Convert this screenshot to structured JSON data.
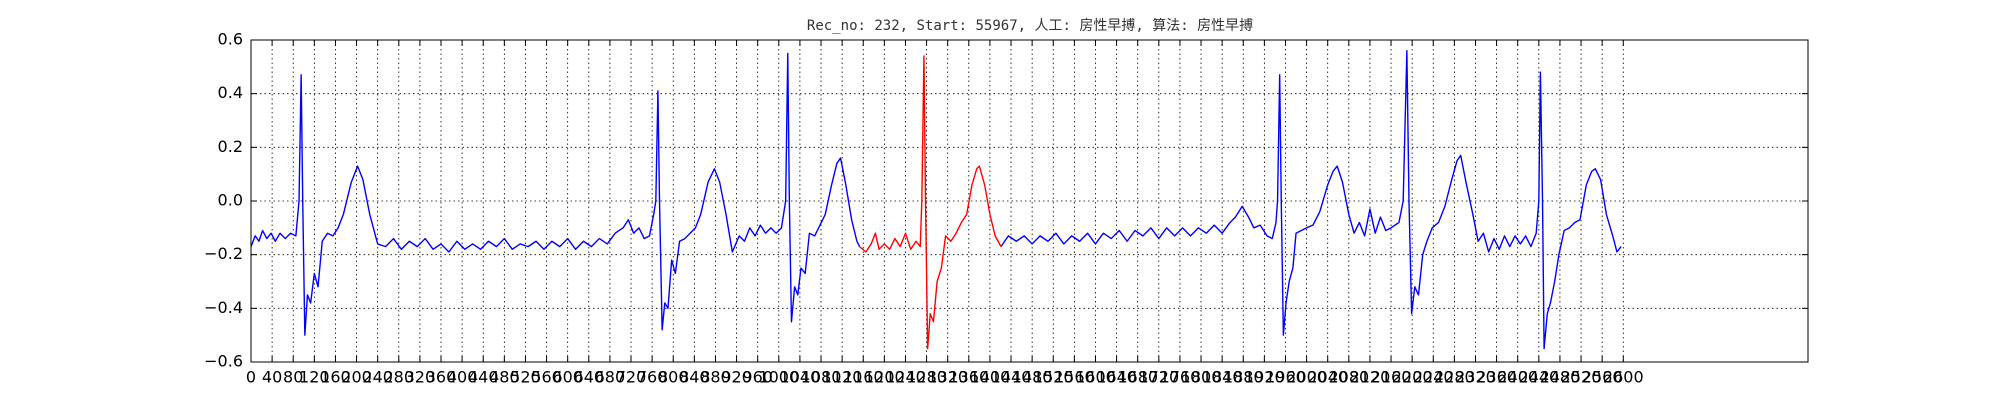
{
  "chart_data": {
    "type": "line",
    "title": "Rec_no: 232, Start: 55967, 人工: 房性早搏, 算法: 房性早搏",
    "x": [
      0,
      8,
      15,
      22,
      30,
      38,
      46,
      55,
      65,
      75,
      85,
      91,
      95,
      98,
      102,
      107,
      113,
      120,
      127,
      135,
      145,
      155,
      165,
      175,
      190,
      202,
      212,
      225,
      240,
      255,
      270,
      285,
      300,
      315,
      330,
      345,
      360,
      375,
      390,
      405,
      420,
      435,
      450,
      465,
      480,
      495,
      510,
      525,
      540,
      555,
      570,
      585,
      600,
      615,
      630,
      645,
      660,
      675,
      690,
      705,
      715,
      725,
      735,
      745,
      755,
      763,
      767,
      771,
      774,
      779,
      784,
      790,
      797,
      804,
      812,
      822,
      832,
      842,
      852,
      866,
      878,
      888,
      900,
      912,
      925,
      935,
      945,
      955,
      965,
      975,
      985,
      995,
      1005,
      1013,
      1017,
      1020,
      1024,
      1030,
      1036,
      1042,
      1050,
      1058,
      1068,
      1078,
      1088,
      1100,
      1110,
      1117,
      1127,
      1138,
      1148,
      1153,
      1165,
      1175,
      1183,
      1190,
      1200,
      1210,
      1220,
      1230,
      1240,
      1250,
      1260,
      1268,
      1271,
      1275,
      1278,
      1282,
      1287,
      1293,
      1300,
      1308,
      1316,
      1326,
      1336,
      1346,
      1356,
      1366,
      1375,
      1380,
      1390,
      1400,
      1410,
      1421,
      1435,
      1450,
      1465,
      1480,
      1495,
      1510,
      1525,
      1540,
      1555,
      1570,
      1585,
      1600,
      1615,
      1630,
      1645,
      1660,
      1675,
      1690,
      1705,
      1720,
      1735,
      1750,
      1765,
      1780,
      1795,
      1810,
      1825,
      1840,
      1855,
      1865,
      1878,
      1890,
      1900,
      1912,
      1925,
      1935,
      1942,
      1945,
      1949,
      1952,
      1956,
      1961,
      1967,
      1974,
      1980,
      1990,
      2000,
      2012,
      2025,
      2040,
      2050,
      2058,
      2068,
      2080,
      2090,
      2100,
      2110,
      2120,
      2130,
      2140,
      2150,
      2160,
      2175,
      2183,
      2190,
      2194,
      2199,
      2205,
      2212,
      2220,
      2228,
      2238,
      2250,
      2262,
      2275,
      2285,
      2292,
      2302,
      2315,
      2325,
      2335,
      2345,
      2355,
      2365,
      2375,
      2385,
      2395,
      2405,
      2415,
      2425,
      2435,
      2440,
      2443,
      2447,
      2450,
      2456,
      2462,
      2470,
      2478,
      2488,
      2498,
      2508,
      2518,
      2530,
      2540,
      2547,
      2557,
      2568,
      2580,
      2588,
      2596
    ],
    "series": [
      {
        "color": "#0000ff",
        "values": [
          -0.17,
          -0.13,
          -0.15,
          -0.11,
          -0.14,
          -0.12,
          -0.15,
          -0.12,
          -0.14,
          -0.12,
          -0.13,
          0.0,
          0.47,
          0.0,
          -0.5,
          -0.35,
          -0.38,
          -0.27,
          -0.32,
          -0.15,
          -0.12,
          -0.13,
          -0.1,
          -0.05,
          0.07,
          0.13,
          0.08,
          -0.05,
          -0.16,
          -0.17,
          -0.14,
          -0.18,
          -0.15,
          -0.17,
          -0.14,
          -0.18,
          -0.16,
          -0.19,
          -0.15,
          -0.18,
          -0.16,
          -0.18,
          -0.15,
          -0.17,
          -0.14,
          -0.18,
          -0.16,
          -0.17,
          -0.15,
          -0.18,
          -0.15,
          -0.17,
          -0.14,
          -0.18,
          -0.15,
          -0.17,
          -0.14,
          -0.16,
          -0.12,
          -0.1,
          -0.07,
          -0.12,
          -0.1,
          -0.14,
          -0.13,
          -0.05,
          0.0,
          0.41,
          0.0,
          -0.48,
          -0.38,
          -0.4,
          -0.22,
          -0.27,
          -0.15,
          -0.14,
          -0.12,
          -0.1,
          -0.05,
          0.07,
          0.12,
          0.07,
          -0.05,
          -0.19,
          -0.13,
          -0.15,
          -0.1,
          -0.13,
          -0.09,
          -0.12,
          -0.1,
          -0.12,
          -0.1,
          0.0,
          0.55,
          0.0,
          -0.45,
          -0.32,
          -0.35,
          -0.25,
          -0.27,
          -0.12,
          -0.13,
          -0.09,
          -0.05,
          0.06,
          0.14,
          0.16,
          0.06,
          -0.07,
          -0.15,
          -0.17,
          null,
          null,
          null,
          null,
          null,
          null,
          null,
          null,
          null,
          null,
          null,
          null,
          null,
          null,
          null,
          null,
          null,
          null,
          null,
          null,
          null,
          null,
          null,
          null,
          null,
          null,
          null,
          null,
          null,
          null,
          null,
          -0.17,
          -0.13,
          -0.15,
          -0.13,
          -0.16,
          -0.13,
          -0.15,
          -0.12,
          -0.16,
          -0.13,
          -0.15,
          -0.12,
          -0.16,
          -0.12,
          -0.14,
          -0.11,
          -0.15,
          -0.11,
          -0.13,
          -0.1,
          -0.14,
          -0.1,
          -0.13,
          -0.1,
          -0.13,
          -0.1,
          -0.12,
          -0.09,
          -0.12,
          -0.08,
          -0.06,
          -0.02,
          -0.06,
          -0.1,
          -0.09,
          -0.13,
          -0.14,
          -0.08,
          0.0,
          0.47,
          0.0,
          -0.5,
          -0.38,
          -0.3,
          -0.25,
          -0.12,
          -0.11,
          -0.1,
          -0.09,
          -0.04,
          0.06,
          0.11,
          0.13,
          0.07,
          -0.05,
          -0.12,
          -0.08,
          -0.13,
          -0.03,
          -0.12,
          -0.06,
          -0.11,
          -0.1,
          -0.08,
          0.0,
          0.56,
          0.0,
          -0.42,
          -0.32,
          -0.35,
          -0.2,
          -0.15,
          -0.1,
          -0.08,
          -0.02,
          0.08,
          0.15,
          0.17,
          0.07,
          -0.05,
          -0.15,
          -0.12,
          -0.19,
          -0.14,
          -0.18,
          -0.13,
          -0.17,
          -0.13,
          -0.16,
          -0.13,
          -0.17,
          -0.12,
          0.0,
          0.48,
          0.0,
          -0.55,
          -0.42,
          -0.38,
          -0.3,
          -0.2,
          -0.11,
          -0.1,
          -0.08,
          -0.07,
          0.06,
          0.11,
          0.12,
          0.08,
          -0.05,
          -0.13,
          -0.19,
          -0.17
        ]
      },
      {
        "color": "#ff0000",
        "values": [
          null,
          null,
          null,
          null,
          null,
          null,
          null,
          null,
          null,
          null,
          null,
          null,
          null,
          null,
          null,
          null,
          null,
          null,
          null,
          null,
          null,
          null,
          null,
          null,
          null,
          null,
          null,
          null,
          null,
          null,
          null,
          null,
          null,
          null,
          null,
          null,
          null,
          null,
          null,
          null,
          null,
          null,
          null,
          null,
          null,
          null,
          null,
          null,
          null,
          null,
          null,
          null,
          null,
          null,
          null,
          null,
          null,
          null,
          null,
          null,
          null,
          null,
          null,
          null,
          null,
          null,
          null,
          null,
          null,
          null,
          null,
          null,
          null,
          null,
          null,
          null,
          null,
          null,
          null,
          null,
          null,
          null,
          null,
          null,
          null,
          null,
          null,
          null,
          null,
          null,
          null,
          null,
          null,
          null,
          null,
          null,
          null,
          null,
          null,
          null,
          null,
          null,
          null,
          null,
          null,
          null,
          null,
          null,
          null,
          null,
          null,
          -0.17,
          -0.19,
          -0.16,
          -0.12,
          -0.18,
          -0.16,
          -0.18,
          -0.14,
          -0.17,
          -0.12,
          -0.18,
          -0.15,
          -0.17,
          0.0,
          0.54,
          0.0,
          -0.55,
          -0.42,
          -0.45,
          -0.3,
          -0.25,
          -0.13,
          -0.15,
          -0.12,
          -0.08,
          -0.05,
          0.06,
          0.12,
          0.13,
          0.06,
          -0.05,
          -0.13,
          -0.17,
          null,
          null,
          null,
          null,
          null,
          null,
          null,
          null,
          null,
          null,
          null,
          null,
          null,
          null,
          null,
          null,
          null,
          null,
          null,
          null,
          null,
          null,
          null,
          null,
          null,
          null,
          null,
          null,
          null,
          null,
          null,
          null,
          null,
          null,
          null,
          null,
          null,
          null,
          null,
          null,
          null,
          null,
          null,
          null,
          null,
          null,
          null,
          null,
          null,
          null,
          null,
          null,
          null,
          null,
          null,
          null,
          null,
          null,
          null,
          null,
          null,
          null,
          null,
          null,
          null,
          null,
          null,
          null,
          null,
          null,
          null,
          null,
          null,
          null,
          null,
          null,
          null,
          null,
          null,
          null,
          null,
          null,
          null,
          null,
          null,
          null,
          null,
          null,
          null,
          null,
          null,
          null,
          null,
          null,
          null,
          null,
          null,
          null,
          null,
          null,
          null,
          null,
          null,
          null,
          null,
          null,
          null,
          null,
          null,
          null,
          null
        ]
      }
    ],
    "xlim": [
      0,
      2950
    ],
    "xticks": [
      0,
      40,
      80,
      120,
      160,
      200,
      240,
      280,
      320,
      360,
      400,
      440,
      480,
      520,
      560,
      600,
      640,
      680,
      720,
      760,
      800,
      840,
      880,
      920,
      960,
      1000,
      1040,
      1080,
      1120,
      1160,
      1200,
      1240,
      1280,
      1320,
      1360,
      1400,
      1440,
      1480,
      1520,
      1560,
      1600,
      1640,
      1680,
      1720,
      1760,
      1800,
      1840,
      1880,
      1920,
      1960,
      2000,
      2040,
      2080,
      2120,
      2160,
      2200,
      2240,
      2280,
      2320,
      2360,
      2400,
      2440,
      2480,
      2520,
      2560,
      2600
    ],
    "ylim": [
      -0.6,
      0.6
    ],
    "yticks": [
      {
        "value": -0.6,
        "label": "−0.6"
      },
      {
        "value": -0.4,
        "label": "−0.4"
      },
      {
        "value": -0.2,
        "label": "−0.2"
      },
      {
        "value": 0,
        "label": "0.0"
      },
      0.2,
      0.4,
      0.6
    ],
    "grid": true
  }
}
